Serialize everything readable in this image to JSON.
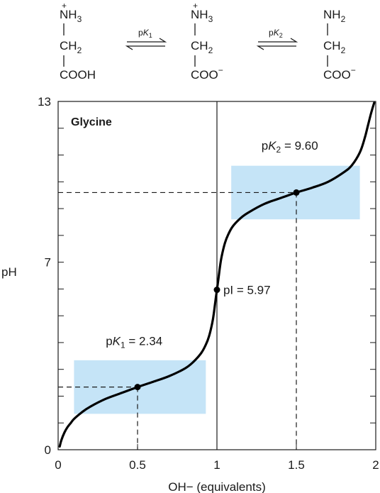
{
  "scheme": {
    "species": [
      {
        "amine_charge": "+",
        "amine": "NH",
        "amine_sub": "3",
        "middle": "CH",
        "middle_sub": "2",
        "acid": "COOH",
        "acid_charge": ""
      },
      {
        "amine_charge": "+",
        "amine": "NH",
        "amine_sub": "3",
        "middle": "CH",
        "middle_sub": "2",
        "acid": "COO",
        "acid_charge": "−"
      },
      {
        "amine_charge": "",
        "amine": "NH",
        "amine_sub": "2",
        "middle": "CH",
        "middle_sub": "2",
        "acid": "COO",
        "acid_charge": "−"
      }
    ],
    "equilibria": [
      {
        "prefix": "p",
        "italic": "K",
        "sub": "1"
      },
      {
        "prefix": "p",
        "italic": "K",
        "sub": "2"
      }
    ]
  },
  "chart_data": {
    "type": "line",
    "title": "Glycine",
    "xlabel": "OH− (equivalents)",
    "ylabel": "pH",
    "xlim": [
      0,
      2
    ],
    "ylim": [
      0,
      13
    ],
    "x_ticks": [
      "0",
      "0.5",
      "1",
      "1.5",
      "2"
    ],
    "y_ticks": [
      "0",
      "7",
      "13"
    ],
    "grid": false,
    "series": [
      {
        "x": [
          0.01,
          0.02,
          0.04,
          0.06,
          0.08,
          0.1,
          0.15,
          0.2,
          0.3,
          0.4,
          0.5,
          0.6,
          0.7,
          0.8,
          0.85,
          0.9,
          0.93,
          0.95,
          0.97,
          0.98,
          0.99,
          1.0,
          1.01,
          1.02,
          1.03,
          1.05,
          1.07,
          1.1,
          1.15,
          1.2,
          1.3,
          1.4,
          1.5,
          1.6,
          1.7,
          1.8,
          1.85,
          1.9,
          1.93,
          1.95,
          1.97,
          1.99
        ],
        "y": [
          0.12,
          0.35,
          0.65,
          0.85,
          1.0,
          1.15,
          1.4,
          1.6,
          1.9,
          2.12,
          2.34,
          2.54,
          2.75,
          3.04,
          3.27,
          3.6,
          3.92,
          4.23,
          4.72,
          5.07,
          5.54,
          5.97,
          6.4,
          6.87,
          7.22,
          7.71,
          8.02,
          8.34,
          8.65,
          8.86,
          9.18,
          9.39,
          9.6,
          9.78,
          10.0,
          10.36,
          10.62,
          11.1,
          11.62,
          12.08,
          12.55,
          12.95
        ]
      }
    ],
    "points": [
      {
        "x": 0.5,
        "y": 2.34
      },
      {
        "x": 1.0,
        "y": 5.97
      },
      {
        "x": 1.5,
        "y": 9.6
      }
    ],
    "buffer_regions": [
      {
        "x": [
          0.1,
          0.93
        ],
        "y": [
          1.34,
          3.34
        ],
        "color": "#c5e4f7"
      },
      {
        "x": [
          1.09,
          1.9
        ],
        "y": [
          8.6,
          10.6
        ],
        "color": "#c5e4f7"
      }
    ],
    "annotations": {
      "pk1": {
        "prefix": "p",
        "italic": "K",
        "sub": "1",
        "value": " = 2.34"
      },
      "pk2": {
        "prefix": "p",
        "italic": "K",
        "sub": "2",
        "value": " = 9.60"
      },
      "pi": {
        "text": "pI = 5.97"
      }
    },
    "colors": {
      "curve": "#000000",
      "buffer": "#c5e4f7",
      "axes": "#1a1a1a"
    }
  }
}
